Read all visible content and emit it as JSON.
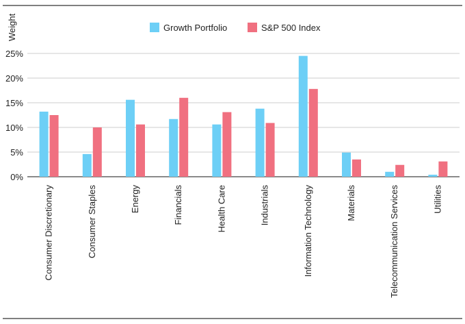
{
  "chart_data": {
    "type": "bar",
    "title": "",
    "xlabel": "",
    "ylabel": "Weight",
    "ylim": [
      0,
      25
    ],
    "yticks": [
      0,
      5,
      10,
      15,
      20,
      25
    ],
    "ytick_labels": [
      "0%",
      "5%",
      "10%",
      "15%",
      "20%",
      "25%"
    ],
    "grid": true,
    "legend_position": "top-center",
    "categories": [
      "Consumer Discretionary",
      "Consumer Staples",
      "Energy",
      "Financials",
      "Health Care",
      "Industrials",
      "Information Technology",
      "Materials",
      "Telecommunication Services",
      "Utilities"
    ],
    "series": [
      {
        "name": "Growth Portfolio",
        "color": "#6dcff6",
        "values": [
          13.2,
          4.6,
          15.6,
          11.7,
          10.6,
          13.8,
          24.5,
          4.9,
          1.0,
          0.4
        ]
      },
      {
        "name": "S&P 500 Index",
        "color": "#f07080",
        "values": [
          12.5,
          10.0,
          10.6,
          16.0,
          13.1,
          10.9,
          17.8,
          3.5,
          2.4,
          3.1
        ]
      }
    ]
  }
}
